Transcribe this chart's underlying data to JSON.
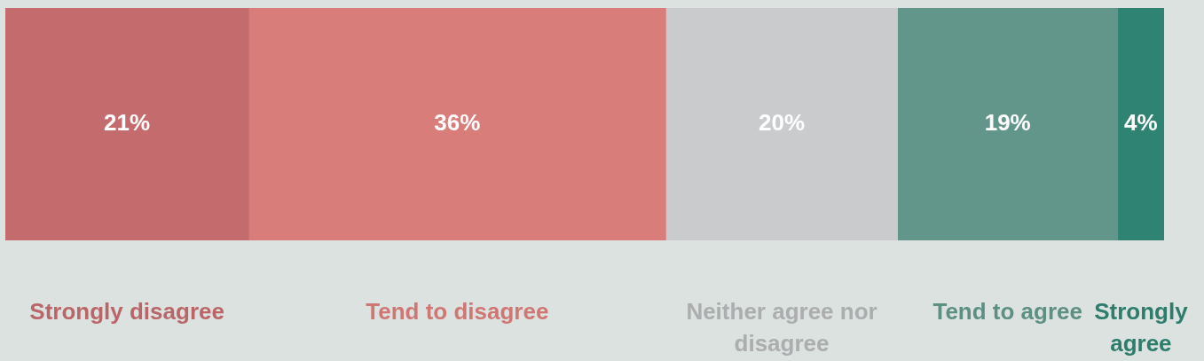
{
  "chart_data": {
    "type": "bar",
    "orientation": "horizontal",
    "stacked": true,
    "categories": [
      null
    ],
    "xlim": [
      0,
      100
    ],
    "tick_labels": false,
    "series": [
      {
        "name": "Strongly disagree",
        "color": "#c46b6d",
        "values": [
          21
        ],
        "value_labels": [
          "21%"
        ]
      },
      {
        "name": "Tend to disagree",
        "color": "#d97d7a",
        "values": [
          36
        ],
        "value_labels": [
          "36%"
        ]
      },
      {
        "name": "Neither agree nor disagree",
        "color": "#cacbcd",
        "values": [
          20
        ],
        "value_labels": [
          "20%"
        ]
      },
      {
        "name": "Tend to agree",
        "color": "#63968a",
        "values": [
          19
        ],
        "value_labels": [
          "19%"
        ]
      },
      {
        "name": "Strongly agree",
        "color": "#2f8372",
        "values": [
          4
        ],
        "value_labels": [
          "4%"
        ]
      }
    ]
  }
}
